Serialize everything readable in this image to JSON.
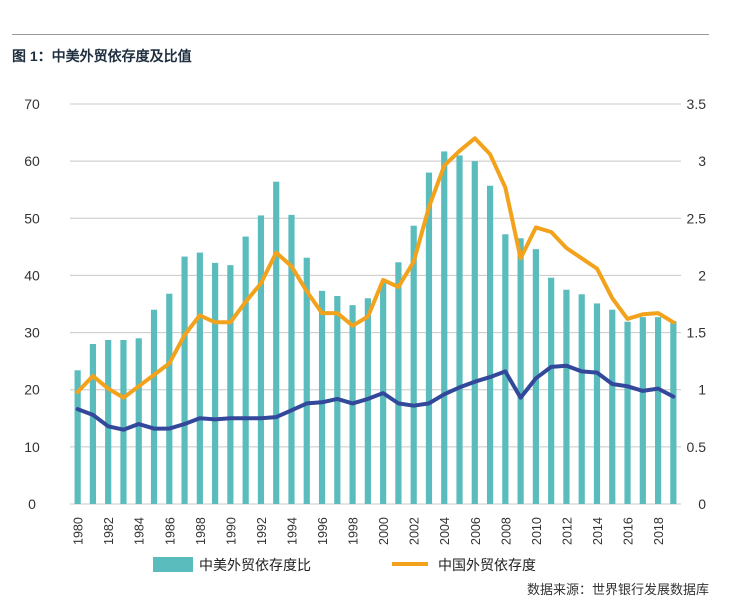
{
  "figure": {
    "title": "图 1：中美外贸依存度及比值",
    "source": "数据来源：世界银行发展数据库"
  },
  "colors": {
    "bars": "#5bbcbd",
    "line_china": "#f3a21c",
    "line_ratio": "#33489a",
    "grid": "#c8c8c8"
  },
  "chart_data": {
    "type": "bar",
    "title": "图 1：中美外贸依存度及比值",
    "years": [
      1980,
      1981,
      1982,
      1983,
      1984,
      1985,
      1986,
      1987,
      1988,
      1989,
      1990,
      1991,
      1992,
      1993,
      1994,
      1995,
      1996,
      1997,
      1998,
      1999,
      2000,
      2001,
      2002,
      2003,
      2004,
      2005,
      2006,
      2007,
      2008,
      2009,
      2010,
      2011,
      2012,
      2013,
      2014,
      2015,
      2016,
      2017,
      2018,
      2019
    ],
    "xtick_labels": [
      "1980",
      "1982",
      "1984",
      "1986",
      "1988",
      "1990",
      "1992",
      "1994",
      "1996",
      "1998",
      "2000",
      "2002",
      "2004",
      "2006",
      "2008",
      "2010",
      "2012",
      "2014",
      "2016",
      "2018"
    ],
    "left_axis": {
      "ylim": [
        0,
        70
      ],
      "ticks": [
        "0",
        "10",
        "20",
        "30",
        "40",
        "50",
        "60",
        "70"
      ]
    },
    "right_axis": {
      "ylim": [
        0,
        3.5
      ],
      "ticks": [
        "0",
        "0.5",
        "1",
        "1.5",
        "2",
        "2.5",
        "3",
        "3.5"
      ]
    },
    "series": [
      {
        "name": "中美外贸依存度比",
        "type": "bar",
        "axis": "left",
        "values": [
          23.4,
          28,
          28.7,
          28.7,
          29,
          34,
          36.8,
          43.3,
          44,
          42.2,
          41.8,
          46.8,
          50.5,
          56.4,
          50.6,
          43.1,
          37.3,
          36.4,
          34.8,
          36,
          38.7,
          42.3,
          48.7,
          58,
          61.7,
          61,
          60,
          55.7,
          47.2,
          46.5,
          44.6,
          39.6,
          37.5,
          36.7,
          35.1,
          34,
          31.9,
          32.7,
          32.7,
          32
        ]
      },
      {
        "name": "中国外贸依存度",
        "type": "line",
        "axis": "right",
        "values": [
          0.98,
          1.12,
          1.01,
          0.93,
          1.03,
          1.13,
          1.23,
          1.48,
          1.65,
          1.59,
          1.59,
          1.77,
          1.93,
          2.2,
          2.08,
          1.86,
          1.67,
          1.67,
          1.56,
          1.64,
          1.96,
          1.9,
          2.12,
          2.6,
          2.96,
          3.09,
          3.2,
          3.06,
          2.77,
          2.15,
          2.42,
          2.38,
          2.24,
          2.15,
          2.06,
          1.8,
          1.62,
          1.66,
          1.67,
          1.59
        ]
      },
      {
        "name": "ratio_line",
        "type": "line",
        "axis": "right",
        "values": [
          0.83,
          0.78,
          0.68,
          0.65,
          0.7,
          0.66,
          0.66,
          0.7,
          0.75,
          0.74,
          0.75,
          0.75,
          0.75,
          0.76,
          0.82,
          0.88,
          0.89,
          0.92,
          0.88,
          0.92,
          0.97,
          0.88,
          0.86,
          0.88,
          0.96,
          1.02,
          1.07,
          1.11,
          1.16,
          0.93,
          1.1,
          1.2,
          1.21,
          1.16,
          1.15,
          1.05,
          1.03,
          0.99,
          1.01,
          0.94
        ]
      }
    ],
    "legend": [
      {
        "label": "中美外贸依存度比",
        "kind": "bar"
      },
      {
        "label": "中国外贸依存度",
        "kind": "line"
      }
    ]
  }
}
